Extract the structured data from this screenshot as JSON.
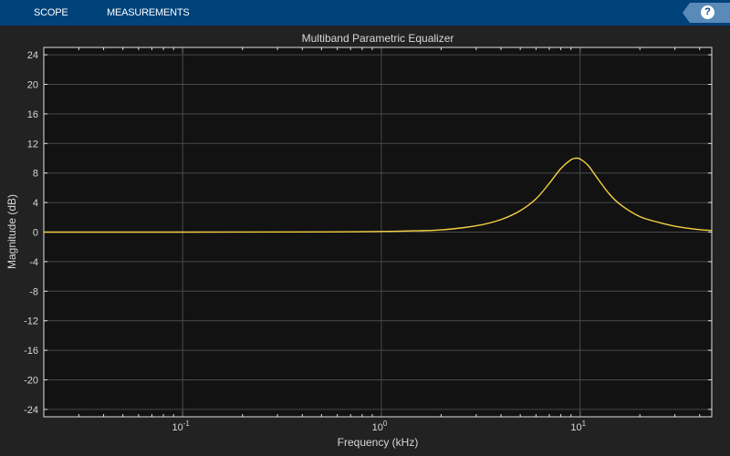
{
  "toolbar": {
    "tabs": [
      {
        "label": "SCOPE"
      },
      {
        "label": "MEASUREMENTS"
      }
    ],
    "help_label": "?",
    "accent": "#00427a"
  },
  "chart_data": {
    "type": "line",
    "title": "Multiband Parametric Equalizer",
    "xlabel": "Frequency (kHz)",
    "ylabel": "Magnitude (dB)",
    "xscale": "log",
    "xlim": [
      0.02,
      46
    ],
    "ylim": [
      -25,
      25
    ],
    "yticks": [
      24,
      20,
      16,
      12,
      8,
      4,
      0,
      -4,
      -8,
      -12,
      -16,
      -20,
      -24
    ],
    "xticks": [
      {
        "value": 0.1,
        "base": "10",
        "exp": "-1"
      },
      {
        "value": 1,
        "base": "10",
        "exp": "0"
      },
      {
        "value": 10,
        "base": "10",
        "exp": "1"
      }
    ],
    "grid": true,
    "line_color": "#f5d142",
    "series": [
      {
        "x": [
          0.02,
          0.1,
          0.5,
          1,
          1.5,
          2,
          3,
          4,
          5,
          6,
          7,
          8,
          9,
          9.5,
          10,
          11,
          12,
          14,
          16,
          20,
          25,
          30,
          38,
          46
        ],
        "y": [
          0,
          0,
          0.02,
          0.08,
          0.18,
          0.3,
          0.85,
          1.7,
          2.9,
          4.5,
          6.6,
          8.6,
          9.8,
          10,
          9.9,
          9,
          7.6,
          5.2,
          3.7,
          2.1,
          1.3,
          0.8,
          0.4,
          0.2
        ]
      }
    ]
  }
}
